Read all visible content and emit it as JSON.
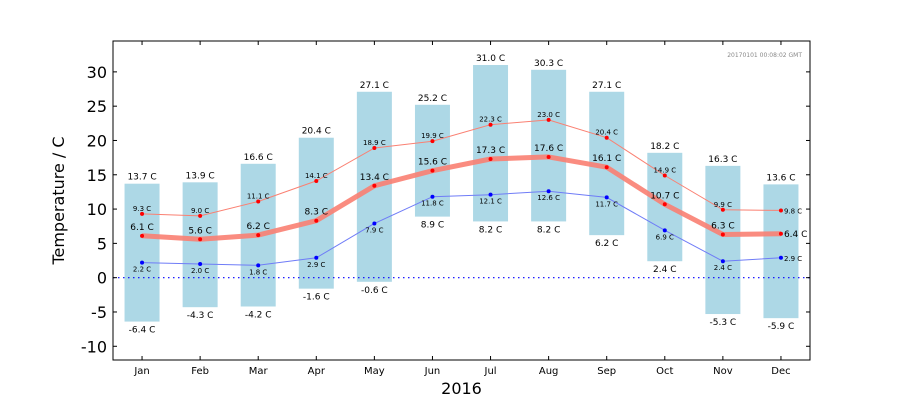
{
  "chart_data": {
    "type": "bar",
    "title": "",
    "timestamp": "20170101 00:08:02 GMT",
    "xlabel": "2016",
    "ylabel": "Temperature / C",
    "ylim": [
      -12,
      34.5
    ],
    "yticks": [
      -10,
      -5,
      0,
      5,
      10,
      15,
      20,
      25,
      30
    ],
    "categories": [
      "Jan",
      "Feb",
      "Mar",
      "Apr",
      "May",
      "Jun",
      "Jul",
      "Aug",
      "Sep",
      "Oct",
      "Nov",
      "Dec"
    ],
    "max_temp": [
      13.7,
      13.9,
      16.6,
      20.4,
      27.1,
      25.2,
      31.0,
      30.3,
      27.1,
      18.2,
      16.3,
      13.6
    ],
    "min_temp": [
      -6.4,
      -4.3,
      -4.2,
      -1.6,
      -0.6,
      8.9,
      8.2,
      8.2,
      6.2,
      2.4,
      -5.3,
      -5.9
    ],
    "mean_max": [
      9.3,
      9.0,
      11.1,
      14.1,
      18.9,
      19.9,
      22.3,
      23.0,
      20.4,
      14.9,
      9.9,
      9.8
    ],
    "mean": [
      6.1,
      5.6,
      6.2,
      8.3,
      13.4,
      15.6,
      17.3,
      17.6,
      16.1,
      10.7,
      6.3,
      6.4
    ],
    "mean_min": [
      2.2,
      2.0,
      1.8,
      2.9,
      7.9,
      11.8,
      12.1,
      12.6,
      11.7,
      6.9,
      2.4,
      2.9
    ],
    "max_labels": [
      "13.7 C",
      "13.9 C",
      "16.6 C",
      "20.4 C",
      "27.1 C",
      "25.2 C",
      "31.0 C",
      "30.3 C",
      "27.1 C",
      "18.2 C",
      "16.3 C",
      "13.6 C"
    ],
    "min_labels": [
      "-6.4 C",
      "-4.3 C",
      "-4.2 C",
      "-1.6 C",
      "-0.6 C",
      "8.9 C",
      "8.2 C",
      "8.2 C",
      "6.2 C",
      "2.4 C",
      "-5.3 C",
      "-5.9 C"
    ],
    "mean_max_labels": [
      "9.3 C",
      "9.0 C",
      "11.1 C",
      "14.1 C",
      "18.9 C",
      "19.9 C",
      "22.3 C",
      "23.0 C",
      "20.4 C",
      "14.9 C",
      "9.9 C",
      "9.8 C"
    ],
    "mean_labels": [
      "6.1 C",
      "5.6 C",
      "6.2 C",
      "8.3 C",
      "13.4 C",
      "15.6 C",
      "17.3 C",
      "17.6 C",
      "16.1 C",
      "10.7 C",
      "6.3 C",
      "6.4 C"
    ],
    "mean_min_labels": [
      "2.2 C",
      "2.0 C",
      "1.8 C",
      "2.9 C",
      "7.9 C",
      "11.8 C",
      "12.1 C",
      "12.6 C",
      "11.7 C",
      "6.9 C",
      "2.4 C",
      "2.9 C"
    ],
    "zero_line": 0,
    "grid": false,
    "colors": {
      "bar": "#add8e6",
      "mean_max_line": "#fa8072",
      "mean_line": "#fa8072",
      "mean_min_line": "#6f7cf7",
      "marker_red": "#ff0000",
      "marker_blue": "#0000ff",
      "zero_line": "#0000ff"
    }
  }
}
